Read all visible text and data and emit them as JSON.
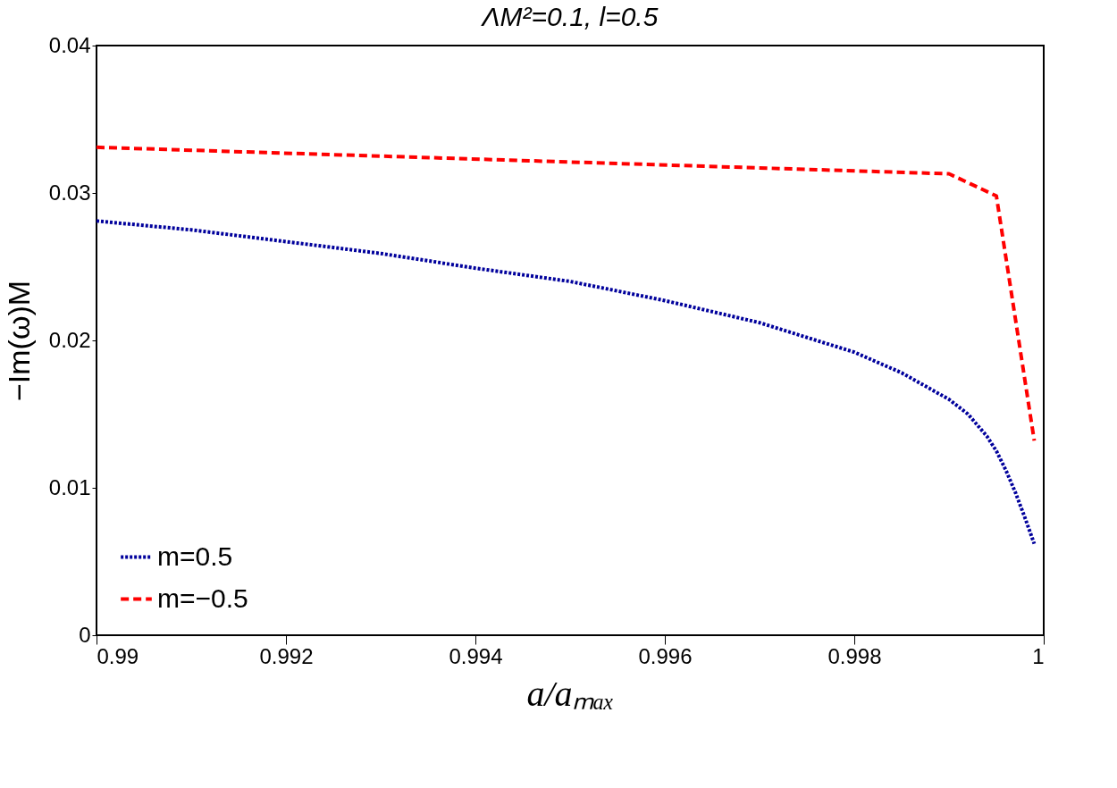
{
  "chart_data": {
    "type": "line",
    "title": "ΛM²=0.1, l=0.5",
    "xlabel": "a/aₘₐₓ",
    "ylabel": "−Im(ω)M",
    "xlim": [
      0.99,
      1.0
    ],
    "xticks": [
      0.99,
      0.992,
      0.994,
      0.996,
      0.998,
      1
    ],
    "ylim": [
      0,
      0.04
    ],
    "yticks": [
      0,
      0.01,
      0.02,
      0.03,
      0.04
    ],
    "grid": false,
    "legend": "bottom left",
    "marker": "none",
    "series": [
      {
        "name": "m=0.5",
        "color": "#00009c",
        "line_style": "dotted",
        "x": [
          0.99,
          0.991,
          0.992,
          0.993,
          0.994,
          0.995,
          0.996,
          0.997,
          0.998,
          0.9985,
          0.999,
          0.9992,
          0.9994,
          0.9995,
          0.9996,
          0.9997,
          0.9998,
          0.9999
        ],
        "values": [
          0.0281,
          0.0275,
          0.0267,
          0.0259,
          0.0249,
          0.024,
          0.0227,
          0.0212,
          0.0192,
          0.0178,
          0.016,
          0.015,
          0.0135,
          0.0125,
          0.0112,
          0.0097,
          0.008,
          0.0062
        ]
      },
      {
        "name": "m=−0.5",
        "color": "#ff0000",
        "line_style": "dashed",
        "x": [
          0.99,
          0.999,
          0.9995,
          0.9999
        ],
        "values": [
          0.0331,
          0.0313,
          0.0298,
          0.0132
        ]
      }
    ]
  }
}
